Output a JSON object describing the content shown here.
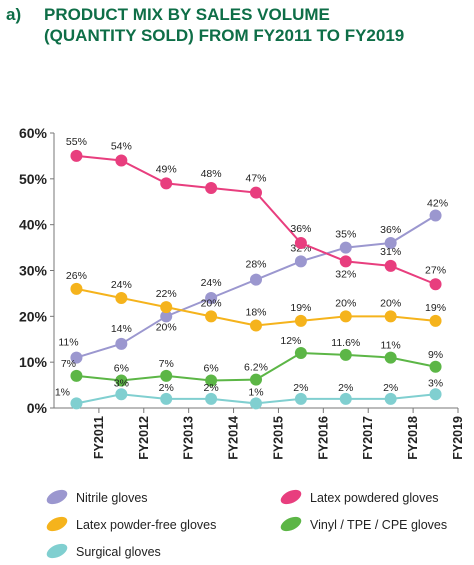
{
  "header": {
    "panel_label": "a)",
    "title_line1": "PRODUCT MIX BY SALES VOLUME",
    "title_line2": "(QUANTITY SOLD) FROM FY2011 TO FY2019"
  },
  "chart_data": {
    "type": "line",
    "title": "PRODUCT MIX BY SALES VOLUME (QUANTITY SOLD) FROM FY2011 TO FY2019",
    "categories": [
      "FY2011",
      "FY2012",
      "FY2013",
      "FY2014",
      "FY2015",
      "FY2016",
      "FY2017",
      "FY2018",
      "FY2019"
    ],
    "y_ticks": [
      "0%",
      "10%",
      "20%",
      "30%",
      "40%",
      "50%",
      "60%"
    ],
    "ylim": [
      0,
      60
    ],
    "grid": false,
    "legend_position": "bottom",
    "series": [
      {
        "name": "Nitrile gloves",
        "color": "#9b97cf",
        "values": [
          11,
          14,
          20,
          24,
          28,
          32,
          35,
          36,
          42
        ],
        "labels": [
          "11%",
          "14%",
          "20%",
          "24%",
          "28%",
          "32%",
          "35%",
          "36%",
          "42%"
        ]
      },
      {
        "name": "Latex powdered gloves",
        "color": "#e83e7e",
        "values": [
          55,
          54,
          49,
          48,
          47,
          36,
          32,
          31,
          27
        ],
        "labels": [
          "55%",
          "54%",
          "49%",
          "48%",
          "47%",
          "36%",
          "32%",
          "31%",
          "27%"
        ]
      },
      {
        "name": "Latex powder-free gloves",
        "color": "#f5b31c",
        "values": [
          26,
          24,
          22,
          20,
          18,
          19,
          20,
          20,
          19
        ],
        "labels": [
          "26%",
          "24%",
          "22%",
          "20%",
          "18%",
          "19%",
          "20%",
          "20%",
          "19%"
        ]
      },
      {
        "name": "Vinyl / TPE / CPE gloves",
        "color": "#5cb646",
        "values": [
          7,
          6,
          7,
          6,
          6.2,
          12,
          11.6,
          11,
          9
        ],
        "labels": [
          "7%",
          "6%",
          "7%",
          "6%",
          "6.2%",
          "12%",
          "11.6%",
          "11%",
          "9%"
        ]
      },
      {
        "name": "Surgical gloves",
        "color": "#80cfd0",
        "values": [
          1,
          3,
          2,
          2,
          1,
          2,
          2,
          2,
          3
        ],
        "labels": [
          "1%",
          "3%",
          "2%",
          "2%",
          "1%",
          "2%",
          "2%",
          "2%",
          "3%"
        ]
      }
    ]
  }
}
